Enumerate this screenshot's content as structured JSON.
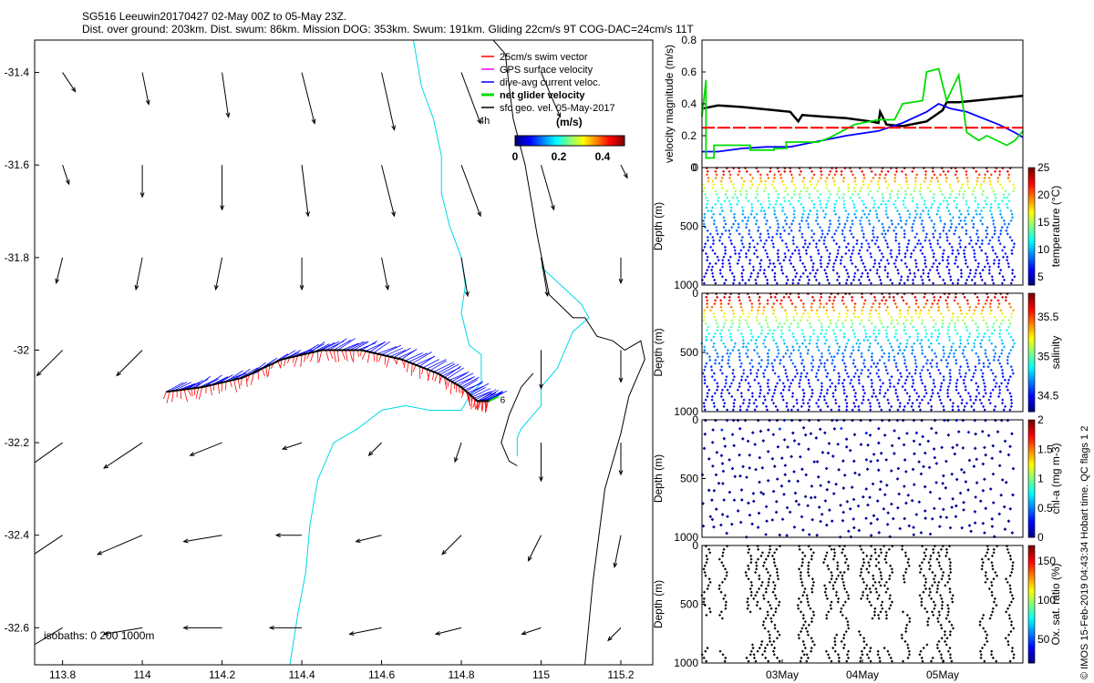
{
  "title": {
    "line1": "SG516 Leeuwin20170427 02-May 00Z to 05-May 23Z.",
    "line2": "Dist. over ground: 203km. Dist. swum: 86km. Mission DOG: 353km. Swum: 191km. Gliding 22cm/s 9T COG-DAC=24cm/s 11T"
  },
  "credit": "© IMOS 15-Feb-2019 04:43:34 Hobart time. QC flags 1 2",
  "chart_data": [
    {
      "type": "map",
      "name": "glider-track-map",
      "xlim": [
        113.73,
        115.28
      ],
      "ylim": [
        -32.68,
        -31.33
      ],
      "x_ticks": [
        113.8,
        114,
        114.2,
        114.4,
        114.6,
        114.8,
        115,
        115.2
      ],
      "x_tick_labels": [
        "113.8",
        "114",
        "114.2",
        "114.4",
        "114.6",
        "114.8",
        "115",
        "115.2"
      ],
      "y_ticks": [
        -31.4,
        -31.6,
        -31.8,
        -32,
        -32.2,
        -32.4,
        -32.6
      ],
      "y_tick_labels": [
        "-31.4",
        "-31.6",
        "-31.8",
        "-32",
        "-32.2",
        "-32.4",
        "-32.6"
      ],
      "legend": [
        {
          "label": "25cm/s swim vector",
          "color": "#ff0000"
        },
        {
          "label": "GPS surface velocity",
          "color": "#ff00ff"
        },
        {
          "label": "dive-avg current veloc.",
          "color": "#0000ff"
        },
        {
          "label": "net glider velocity",
          "color": "#00dd00"
        },
        {
          "label": "sfc geo. vel. 05-May-2017",
          "color": "#000000"
        }
      ],
      "legend_note": "4h",
      "colorbar": {
        "unit": "(m/s)",
        "range": [
          0,
          0.5
        ],
        "tick_values": [
          0,
          0.2,
          0.4
        ],
        "tick_labels": [
          "0",
          "0.2",
          "0.4"
        ]
      },
      "isobath_label": "isobaths: 0   200  1000m",
      "end_label": "6",
      "track": [
        [
          114.06,
          -32.09
        ],
        [
          114.15,
          -32.08
        ],
        [
          114.25,
          -32.06
        ],
        [
          114.35,
          -32.02
        ],
        [
          114.45,
          -32.0
        ],
        [
          114.55,
          -32.0
        ],
        [
          114.65,
          -32.02
        ],
        [
          114.74,
          -32.05
        ],
        [
          114.8,
          -32.08
        ],
        [
          114.84,
          -32.11
        ],
        [
          114.87,
          -32.11
        ]
      ],
      "coast_0m": [
        [
          114.88,
          -31.33
        ],
        [
          114.91,
          -31.36
        ],
        [
          114.92,
          -31.43
        ],
        [
          114.93,
          -31.5
        ],
        [
          114.96,
          -31.6
        ],
        [
          114.98,
          -31.7
        ],
        [
          114.99,
          -31.75
        ],
        [
          115.02,
          -31.88
        ],
        [
          115.08,
          -31.93
        ],
        [
          115.11,
          -31.93
        ],
        [
          115.14,
          -31.97
        ],
        [
          115.18,
          -31.98
        ],
        [
          115.21,
          -32.0
        ],
        [
          115.25,
          -31.98
        ],
        [
          115.26,
          -32.02
        ],
        [
          115.24,
          -32.06
        ],
        [
          115.22,
          -32.1
        ],
        [
          115.2,
          -32.18
        ],
        [
          115.16,
          -32.3
        ],
        [
          115.13,
          -32.5
        ],
        [
          115.11,
          -32.68
        ]
      ],
      "isobath_200m": [
        [
          114.68,
          -31.33
        ],
        [
          114.69,
          -31.38
        ],
        [
          114.7,
          -31.43
        ],
        [
          114.73,
          -31.5
        ],
        [
          114.75,
          -31.58
        ],
        [
          114.75,
          -31.66
        ],
        [
          114.77,
          -31.73
        ],
        [
          114.8,
          -31.8
        ],
        [
          114.81,
          -31.86
        ],
        [
          114.8,
          -31.92
        ],
        [
          114.82,
          -31.99
        ],
        [
          114.85,
          -32.01
        ],
        [
          114.85,
          -32.07
        ],
        [
          114.82,
          -32.1
        ],
        [
          114.8,
          -32.13
        ],
        [
          114.72,
          -32.13
        ],
        [
          114.66,
          -32.12
        ],
        [
          114.6,
          -32.13
        ],
        [
          114.54,
          -32.17
        ],
        [
          114.48,
          -32.2
        ],
        [
          114.44,
          -32.28
        ],
        [
          114.42,
          -32.38
        ],
        [
          114.41,
          -32.48
        ],
        [
          114.39,
          -32.57
        ],
        [
          114.37,
          -32.68
        ]
      ],
      "isobath_200m_b": [
        [
          115.0,
          -31.82
        ],
        [
          115.1,
          -31.9
        ],
        [
          115.12,
          -31.93
        ],
        [
          115.08,
          -31.96
        ],
        [
          115.04,
          -32.04
        ],
        [
          115.0,
          -32.08
        ],
        [
          115.0,
          -32.12
        ],
        [
          114.95,
          -32.17
        ],
        [
          114.94,
          -32.19
        ],
        [
          114.94,
          -32.23
        ]
      ],
      "isobath_1000m": [
        [
          114.98,
          -32.05
        ],
        [
          114.95,
          -32.08
        ],
        [
          114.92,
          -32.14
        ],
        [
          114.9,
          -32.2
        ],
        [
          114.92,
          -32.24
        ],
        [
          114.94,
          -32.25
        ]
      ],
      "sfc_vectors": [
        {
          "lon": 113.8,
          "lat": -31.4,
          "u": 0.02,
          "v": -0.03
        },
        {
          "lon": 114.0,
          "lat": -31.4,
          "u": 0.01,
          "v": -0.05
        },
        {
          "lon": 114.2,
          "lat": -31.4,
          "u": 0.01,
          "v": -0.07
        },
        {
          "lon": 114.4,
          "lat": -31.4,
          "u": 0.02,
          "v": -0.08
        },
        {
          "lon": 114.6,
          "lat": -31.4,
          "u": 0.02,
          "v": -0.09
        },
        {
          "lon": 114.8,
          "lat": -31.4,
          "u": 0.03,
          "v": -0.08
        },
        {
          "lon": 115.0,
          "lat": -31.4,
          "u": 0.03,
          "v": -0.07
        },
        {
          "lon": 113.8,
          "lat": -31.6,
          "u": 0.01,
          "v": -0.03
        },
        {
          "lon": 114.0,
          "lat": -31.6,
          "u": 0.0,
          "v": -0.05
        },
        {
          "lon": 114.2,
          "lat": -31.6,
          "u": 0.0,
          "v": -0.07
        },
        {
          "lon": 114.4,
          "lat": -31.6,
          "u": 0.01,
          "v": -0.08
        },
        {
          "lon": 114.6,
          "lat": -31.6,
          "u": 0.02,
          "v": -0.08
        },
        {
          "lon": 114.8,
          "lat": -31.6,
          "u": 0.03,
          "v": -0.08
        },
        {
          "lon": 115.0,
          "lat": -31.6,
          "u": 0.02,
          "v": -0.07
        },
        {
          "lon": 115.2,
          "lat": -31.6,
          "u": 0.01,
          "v": -0.02
        },
        {
          "lon": 113.8,
          "lat": -31.8,
          "u": -0.01,
          "v": -0.04
        },
        {
          "lon": 114.0,
          "lat": -31.8,
          "u": -0.01,
          "v": -0.05
        },
        {
          "lon": 114.2,
          "lat": -31.8,
          "u": -0.01,
          "v": -0.05
        },
        {
          "lon": 114.4,
          "lat": -31.8,
          "u": 0.0,
          "v": -0.05
        },
        {
          "lon": 114.6,
          "lat": -31.8,
          "u": 0.01,
          "v": -0.05
        },
        {
          "lon": 114.8,
          "lat": -31.8,
          "u": 0.01,
          "v": -0.06
        },
        {
          "lon": 115.0,
          "lat": -31.8,
          "u": 0.01,
          "v": -0.06
        },
        {
          "lon": 115.2,
          "lat": -31.8,
          "u": 0.0,
          "v": -0.04
        },
        {
          "lon": 113.8,
          "lat": -32.0,
          "u": -0.04,
          "v": -0.04
        },
        {
          "lon": 114.0,
          "lat": -32.0,
          "u": -0.04,
          "v": -0.04
        },
        {
          "lon": 115.0,
          "lat": -32.0,
          "u": 0.0,
          "v": -0.06
        },
        {
          "lon": 115.2,
          "lat": -32.0,
          "u": 0.0,
          "v": -0.05
        },
        {
          "lon": 113.8,
          "lat": -32.2,
          "u": -0.07,
          "v": -0.05
        },
        {
          "lon": 114.0,
          "lat": -32.2,
          "u": -0.06,
          "v": -0.04
        },
        {
          "lon": 114.2,
          "lat": -32.2,
          "u": -0.05,
          "v": -0.02
        },
        {
          "lon": 114.4,
          "lat": -32.2,
          "u": -0.03,
          "v": -0.01
        },
        {
          "lon": 114.6,
          "lat": -32.2,
          "u": -0.02,
          "v": -0.02
        },
        {
          "lon": 114.8,
          "lat": -32.2,
          "u": -0.01,
          "v": -0.03
        },
        {
          "lon": 115.0,
          "lat": -32.2,
          "u": 0.0,
          "v": -0.06
        },
        {
          "lon": 115.2,
          "lat": -32.2,
          "u": 0.0,
          "v": -0.05
        },
        {
          "lon": 113.8,
          "lat": -32.4,
          "u": -0.06,
          "v": -0.04
        },
        {
          "lon": 114.0,
          "lat": -32.4,
          "u": -0.07,
          "v": -0.03
        },
        {
          "lon": 114.2,
          "lat": -32.4,
          "u": -0.06,
          "v": -0.01
        },
        {
          "lon": 114.4,
          "lat": -32.4,
          "u": -0.04,
          "v": 0.0
        },
        {
          "lon": 114.6,
          "lat": -32.4,
          "u": -0.04,
          "v": -0.01
        },
        {
          "lon": 114.8,
          "lat": -32.4,
          "u": -0.03,
          "v": -0.03
        },
        {
          "lon": 115.0,
          "lat": -32.4,
          "u": -0.02,
          "v": -0.04
        },
        {
          "lon": 115.2,
          "lat": -32.4,
          "u": -0.01,
          "v": -0.05
        },
        {
          "lon": 113.8,
          "lat": -32.6,
          "u": -0.05,
          "v": -0.03
        },
        {
          "lon": 114.0,
          "lat": -32.6,
          "u": -0.06,
          "v": -0.01
        },
        {
          "lon": 114.2,
          "lat": -32.6,
          "u": -0.06,
          "v": 0.0
        },
        {
          "lon": 114.4,
          "lat": -32.6,
          "u": -0.05,
          "v": 0.0
        },
        {
          "lon": 114.6,
          "lat": -32.6,
          "u": -0.05,
          "v": -0.01
        },
        {
          "lon": 114.8,
          "lat": -32.6,
          "u": -0.04,
          "v": -0.01
        },
        {
          "lon": 115.0,
          "lat": -32.6,
          "u": -0.03,
          "v": -0.01
        },
        {
          "lon": 115.2,
          "lat": -32.6,
          "u": -0.02,
          "v": -0.02
        }
      ]
    },
    {
      "type": "line",
      "name": "velocity-magnitude",
      "ylabel": "velocity magnitude (m/s)",
      "ylim": [
        0,
        0.8
      ],
      "y_ticks": [
        0,
        0.2,
        0.4,
        0.6,
        0.8
      ],
      "y_tick_labels": [
        "0",
        "0.2",
        "0.4",
        "0.6",
        "0.8"
      ],
      "xlim": [
        2.0,
        6.0
      ],
      "series": [
        {
          "name": "net glider speed",
          "color": "#000000",
          "x": [
            2.0,
            2.2,
            2.5,
            2.9,
            3.1,
            3.2,
            3.25,
            3.5,
            3.8,
            4.1,
            4.2,
            4.22,
            4.3,
            4.5,
            4.8,
            5.0,
            5.05,
            5.2,
            5.4,
            5.6,
            5.8,
            6.0
          ],
          "y": [
            0.37,
            0.39,
            0.38,
            0.36,
            0.35,
            0.29,
            0.33,
            0.32,
            0.31,
            0.29,
            0.28,
            0.35,
            0.27,
            0.26,
            0.29,
            0.36,
            0.41,
            0.41,
            0.42,
            0.43,
            0.44,
            0.45
          ]
        },
        {
          "name": "dive-avg current",
          "color": "#0000ff",
          "x": [
            2.0,
            2.2,
            2.5,
            2.8,
            3.1,
            3.4,
            3.8,
            4.2,
            4.5,
            4.8,
            4.95,
            5.1,
            5.3,
            5.5,
            5.7,
            5.9,
            6.0
          ],
          "y": [
            0.1,
            0.1,
            0.12,
            0.13,
            0.13,
            0.16,
            0.2,
            0.23,
            0.28,
            0.35,
            0.4,
            0.37,
            0.35,
            0.31,
            0.27,
            0.22,
            0.19
          ]
        },
        {
          "name": "surface velocity",
          "color": "#00dd00",
          "x": [
            2.0,
            2.05,
            2.05,
            2.15,
            2.15,
            2.6,
            2.6,
            2.9,
            2.9,
            3.05,
            3.05,
            3.45,
            3.6,
            3.9,
            4.2,
            4.4,
            4.5,
            4.75,
            4.8,
            4.95,
            5.05,
            5.2,
            5.3,
            5.45,
            5.55,
            5.8,
            5.9,
            6.0
          ],
          "y": [
            0.32,
            0.55,
            0.06,
            0.06,
            0.14,
            0.14,
            0.11,
            0.11,
            0.12,
            0.12,
            0.16,
            0.16,
            0.19,
            0.27,
            0.3,
            0.3,
            0.4,
            0.42,
            0.6,
            0.62,
            0.42,
            0.58,
            0.22,
            0.17,
            0.2,
            0.14,
            0.17,
            0.23
          ]
        },
        {
          "name": "25cm/s reference",
          "color": "#ff0000",
          "dashed": true,
          "x": [
            2.0,
            6.0
          ],
          "y": [
            0.25,
            0.25
          ]
        }
      ]
    },
    {
      "type": "scatter",
      "name": "temperature-section",
      "ylabel": "Depth (m)",
      "y_ticks": [
        0,
        500,
        1000
      ],
      "y_tick_labels": [
        "0",
        "500",
        "1000"
      ],
      "ylim": [
        0,
        1000
      ],
      "xlim": [
        2.0,
        6.0
      ],
      "colorbar": {
        "label": "temperature (°C)",
        "range": [
          3.5,
          25
        ],
        "tick_values": [
          5,
          10,
          15,
          20,
          25
        ],
        "tick_labels": [
          "5",
          "10",
          "15",
          "20",
          "25"
        ]
      },
      "profile": {
        "n_dives": 36,
        "max_depth": 1000,
        "surface_value": 24.5,
        "bottom_value": 4.5,
        "thermocline_depth": 130
      }
    },
    {
      "type": "scatter",
      "name": "salinity-section",
      "ylabel": "Depth (m)",
      "y_ticks": [
        0,
        500,
        1000
      ],
      "y_tick_labels": [
        "0",
        "500",
        "1000"
      ],
      "ylim": [
        0,
        1000
      ],
      "xlim": [
        2.0,
        6.0
      ],
      "colorbar": {
        "label": "salinity",
        "range": [
          34.3,
          35.8
        ],
        "tick_values": [
          34.5,
          35,
          35.5
        ],
        "tick_labels": [
          "34.5",
          "35",
          "35.5"
        ]
      },
      "profile": {
        "n_dives": 36,
        "max_depth": 1000,
        "surface_value": 35.8,
        "bottom_value": 34.38,
        "thermocline_depth": 160
      }
    },
    {
      "type": "scatter",
      "name": "chlorophyll-section",
      "ylabel": "Depth (m)",
      "y_ticks": [
        0,
        500,
        1000
      ],
      "y_tick_labels": [
        "0",
        "500",
        "1000"
      ],
      "ylim": [
        0,
        1000
      ],
      "xlim": [
        2.0,
        6.0
      ],
      "colorbar": {
        "label": "chl-a (mg m-3)",
        "range": [
          0,
          2
        ],
        "tick_values": [
          0,
          0.5,
          1,
          1.5,
          2
        ],
        "tick_labels": [
          "0",
          "0.5",
          "1",
          "1.5",
          "2"
        ]
      },
      "profile": {
        "n_dives": 36,
        "max_depth": 1000,
        "surface_value": 0.3,
        "bottom_value": 0.02,
        "sparse": true
      }
    },
    {
      "type": "scatter",
      "name": "oxygen-section",
      "ylabel": "Depth (m)",
      "y_ticks": [
        0,
        500,
        1000
      ],
      "y_tick_labels": [
        "0",
        "500",
        "1000"
      ],
      "ylim": [
        0,
        1000
      ],
      "xlim": [
        2.0,
        6.0
      ],
      "x_ticks": [
        3,
        4,
        5
      ],
      "x_tick_labels": [
        "03May",
        "04May",
        "05May"
      ],
      "colorbar": {
        "label": "Ox. sat. ratio (%)",
        "range": [
          20,
          170
        ],
        "tick_values": [
          50,
          100,
          150
        ],
        "tick_labels": [
          "50",
          "100",
          "150"
        ]
      },
      "profile": {
        "n_dives": 36,
        "max_depth": 1000,
        "surface_value": 100,
        "bottom_value": 40,
        "gappy": true
      }
    }
  ]
}
